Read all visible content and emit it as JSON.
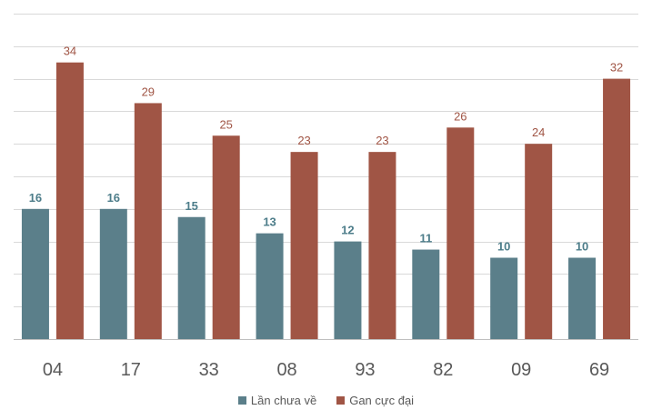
{
  "chart_data": {
    "type": "bar",
    "title": "",
    "xlabel": "",
    "ylabel": "",
    "ylim": [
      0,
      40
    ],
    "grid": true,
    "legend_position": "bottom-center",
    "categories": [
      "04",
      "17",
      "33",
      "08",
      "93",
      "82",
      "09",
      "69"
    ],
    "series": [
      {
        "name": "Lần chưa về",
        "color": "#5b7f8a",
        "label_color": "#4d7d8a",
        "values": [
          16,
          16,
          15,
          13,
          12,
          11,
          10,
          10
        ]
      },
      {
        "name": "Gan cực đại",
        "color": "#a05545",
        "label_color": "#a05545",
        "values": [
          34,
          29,
          25,
          23,
          23,
          26,
          24,
          32
        ]
      }
    ]
  }
}
